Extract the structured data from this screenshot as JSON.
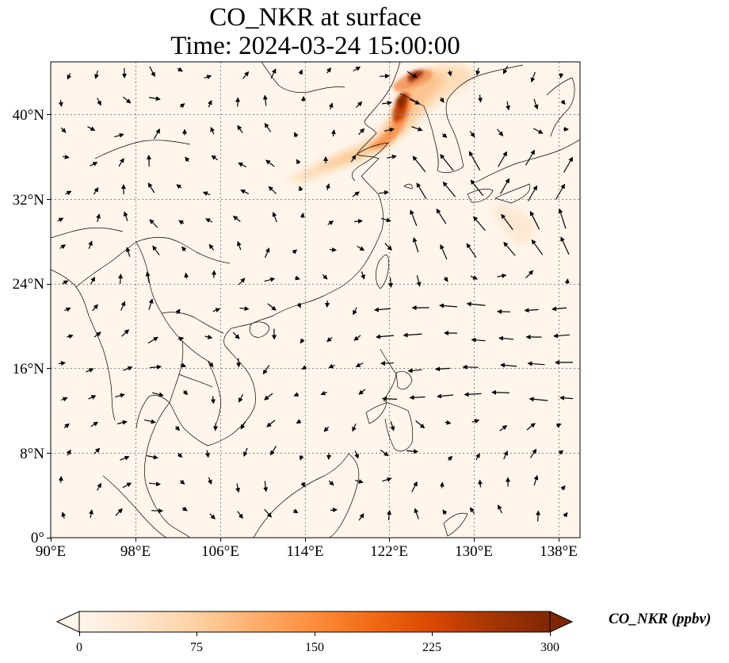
{
  "title": {
    "line1": "CO_NKR at surface",
    "line2": "Time: 2024-03-24 15:00:00"
  },
  "map": {
    "lon_range": [
      90,
      141
    ],
    "lat_range": [
      0,
      45
    ],
    "x_ticks": [
      "90°E",
      "98°E",
      "106°E",
      "114°E",
      "122°E",
      "130°E",
      "138°E"
    ],
    "y_ticks": [
      "0°",
      "8°N",
      "16°N",
      "24°N",
      "32°N",
      "40°N"
    ],
    "gridlines": true
  },
  "colorbar": {
    "label": "CO_NKR (ppbv)",
    "ticks": [
      "0",
      "75",
      "150",
      "225",
      "300"
    ],
    "range": [
      0,
      300
    ],
    "colormap": [
      "#fff5eb",
      "#fee6ce",
      "#fdd0a2",
      "#fdae6b",
      "#fd8d3c",
      "#f16913",
      "#d94801",
      "#a63603",
      "#7f2704"
    ],
    "extend": "both"
  }
}
